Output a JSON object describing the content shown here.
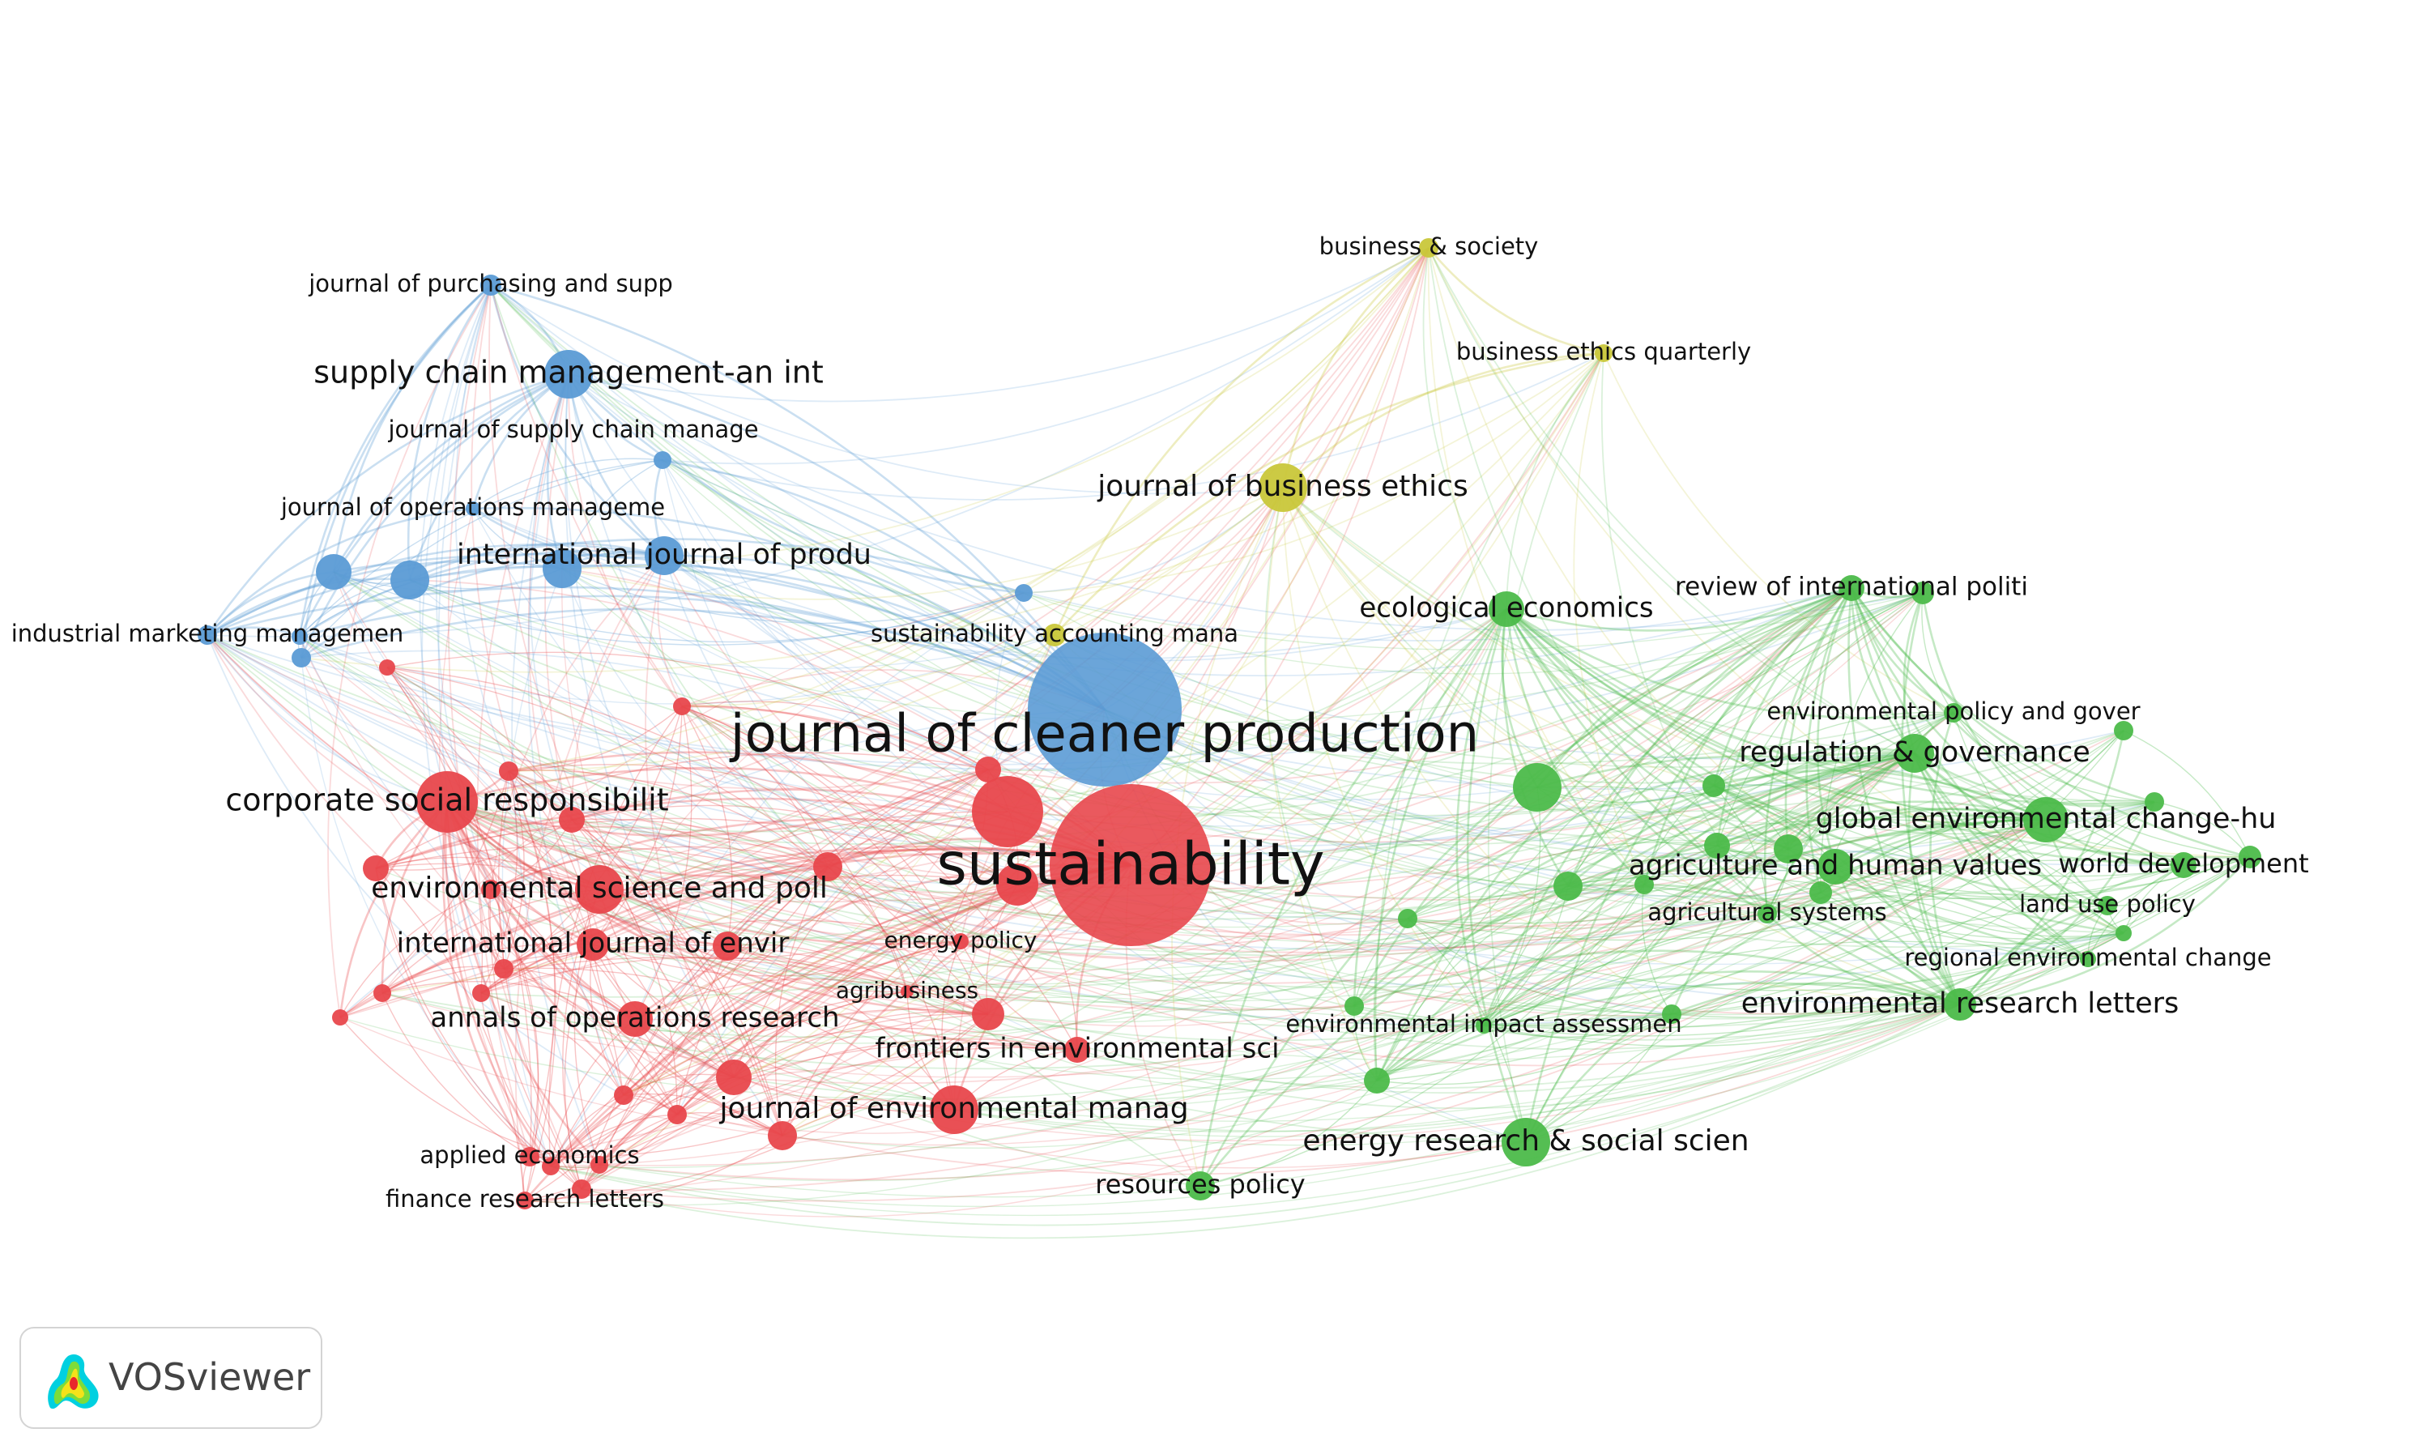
{
  "colors": {
    "red": "#e8474c",
    "blue": "#5b9bd5",
    "green": "#4cbb4a",
    "yellow": "#c9c73a"
  },
  "branding": {
    "logo_text": "VOSviewer"
  },
  "labels": {
    "journal_of_cleaner_production": "journal of cleaner production",
    "sustainability": "sustainability",
    "supply_chain_management": "supply chain management-an int",
    "journal_of_purchasing": "journal of purchasing and supp",
    "journal_of_supply_chain_manage": "journal of supply chain manage",
    "journal_of_operations_manageme": "journal of operations manageme",
    "international_journal_of_produ": "international journal of produ",
    "industrial_marketing_managemen": "industrial marketing managemen",
    "corporate_social_responsibilit": "corporate social responsibilit",
    "environmental_science_and_poll": "environmental science and poll",
    "international_journal_of_envir": "international journal of envir",
    "energy_policy": "energy policy",
    "agribusiness": "agribusiness",
    "annals_of_operations_research": "annals of operations research",
    "frontiers_in_environmental_sci": "frontiers in environmental sci",
    "journal_of_environmental_manag": "journal of environmental manag",
    "applied_economics": "applied economics",
    "finance_research_letters": "finance research letters",
    "business_and_society": "business & society",
    "business_ethics_quarterly": "business ethics quarterly",
    "journal_of_business_ethics": "journal of business ethics",
    "sustainability_accounting_mana": "sustainability accounting mana",
    "ecological_economics": "ecological economics",
    "review_of_international_politi": "review of international politi",
    "environmental_policy_and_gover": "environmental policy and gover",
    "regulation_and_governance": "regulation & governance",
    "global_environmental_change_hu": "global environmental change-hu",
    "agriculture_and_human_values": "agriculture and human values",
    "world_development": "world development",
    "land_use_policy": "land use policy",
    "agricultural_systems": "agricultural systems",
    "regional_environmental_change": "regional environmental change",
    "environmental_research_letters": "environmental research letters",
    "environmental_impact_assessmen": "environmental impact assessmen",
    "energy_research_and_social_scien": "energy research & social scien",
    "resources_policy": "resources policy"
  }
}
